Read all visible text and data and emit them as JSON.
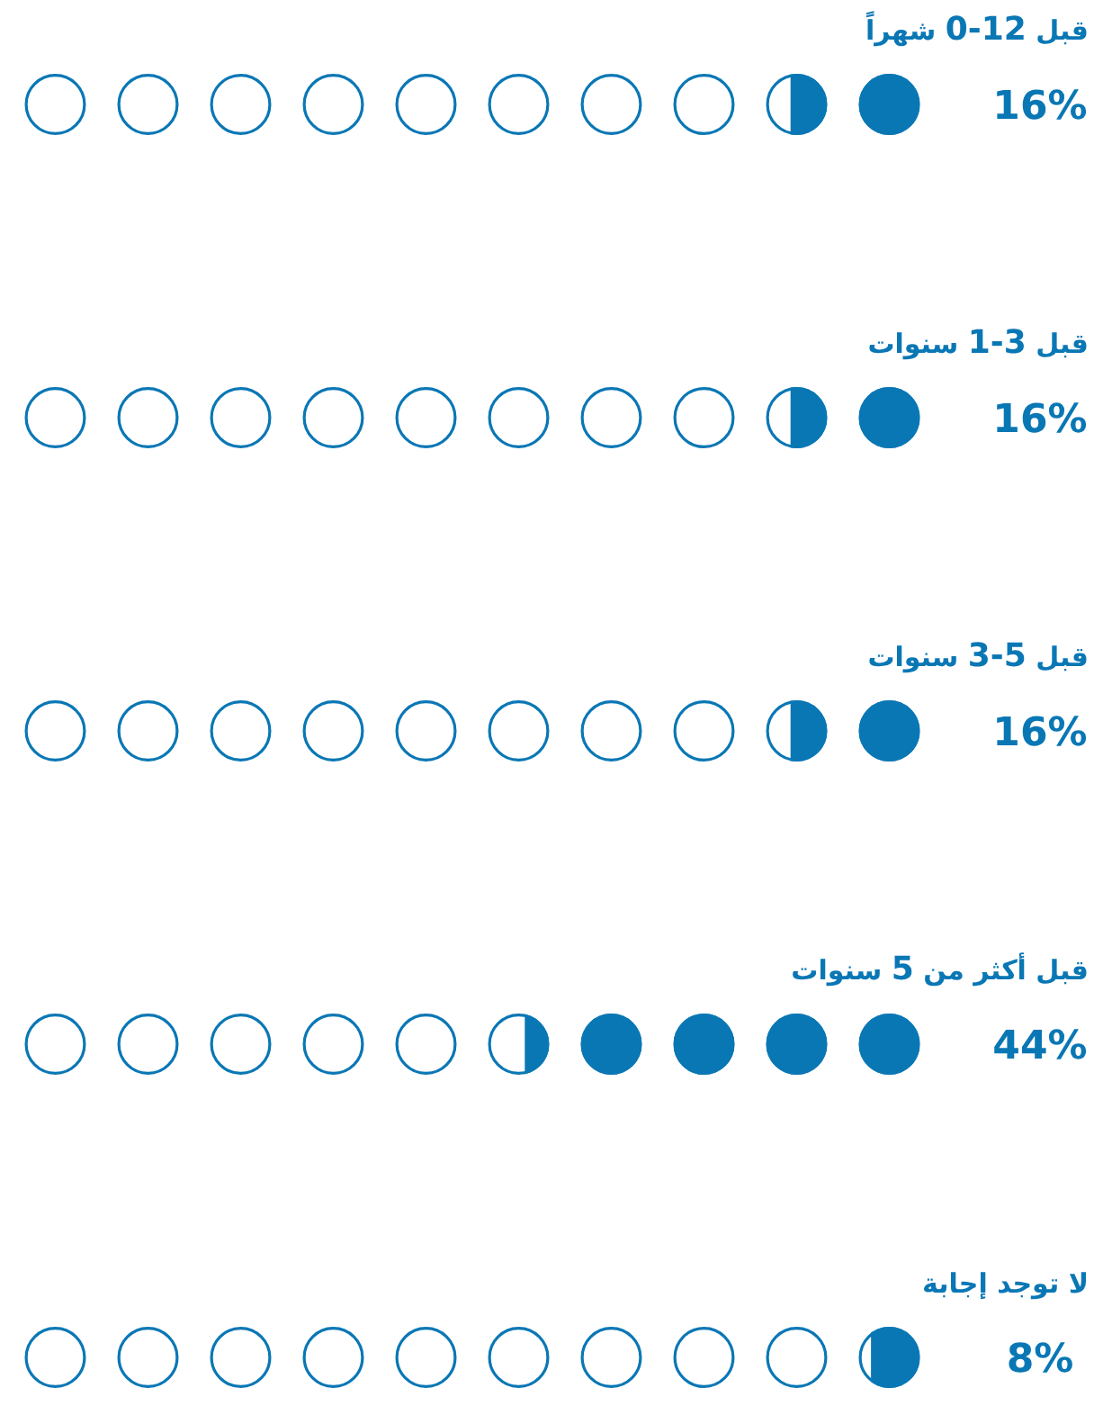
{
  "chart_data": {
    "type": "other",
    "categories": [
      "قبل 0-12 شهراً",
      "قبل 1-3 سنوات",
      "قبل 3-5 سنوات",
      "قبل أكثر من 5 سنوات",
      "لا توجد إجابة"
    ],
    "values": [
      16,
      16,
      16,
      44,
      8
    ],
    "value_labels": [
      "16%",
      "16%",
      "16%",
      "44%",
      "8%"
    ],
    "color": "#0a77b5"
  }
}
